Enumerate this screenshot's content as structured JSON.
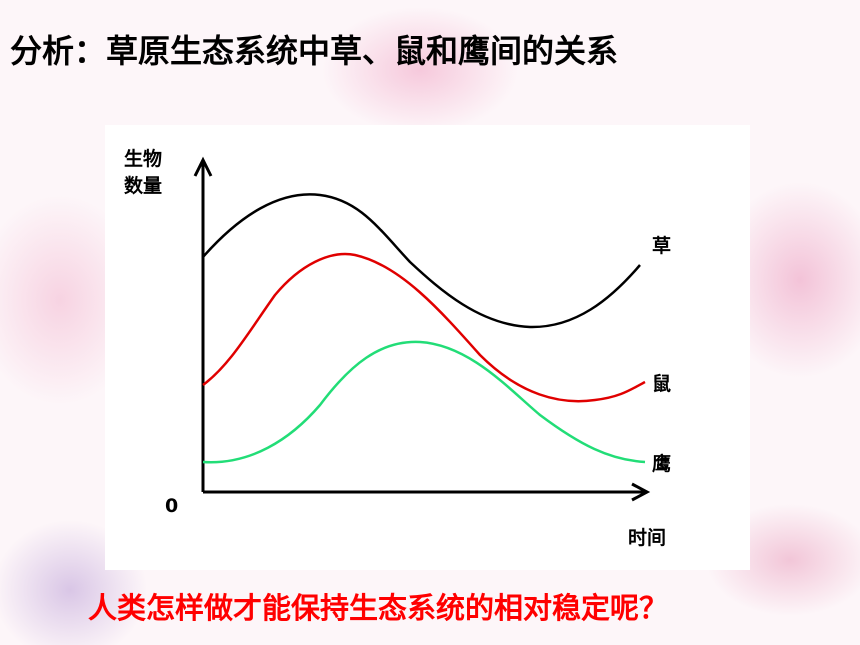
{
  "title": "分析：草原生态系统中草、鼠和鹰间的关系",
  "diagram": {
    "y_axis_label": [
      "生物",
      "数量"
    ],
    "origin": "0",
    "x_axis_label": "时间",
    "curve_labels": [
      "草",
      "鼠",
      "鹰"
    ]
  },
  "question": "人类怎样做才能保持生态系统的相对稳定呢？"
}
